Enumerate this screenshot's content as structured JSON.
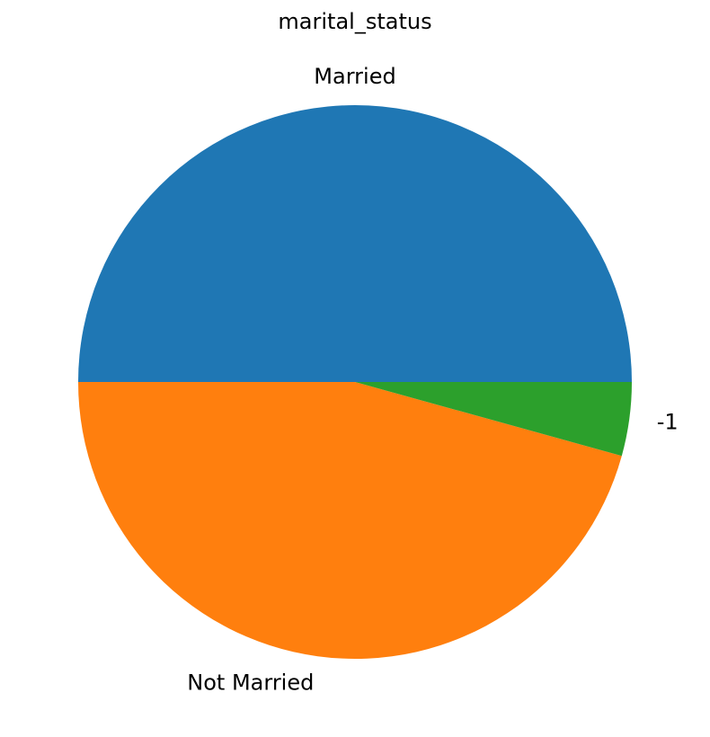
{
  "chart_data": {
    "type": "pie",
    "title": "marital_status",
    "labels": [
      "Married",
      "Not Married",
      "-1"
    ],
    "values": [
      0.5,
      0.457,
      0.043
    ],
    "colors": [
      "#1f77b4",
      "#ff7f0e",
      "#2ca02c"
    ],
    "start_angle_deg": 0,
    "direction": "counterclockwise"
  }
}
